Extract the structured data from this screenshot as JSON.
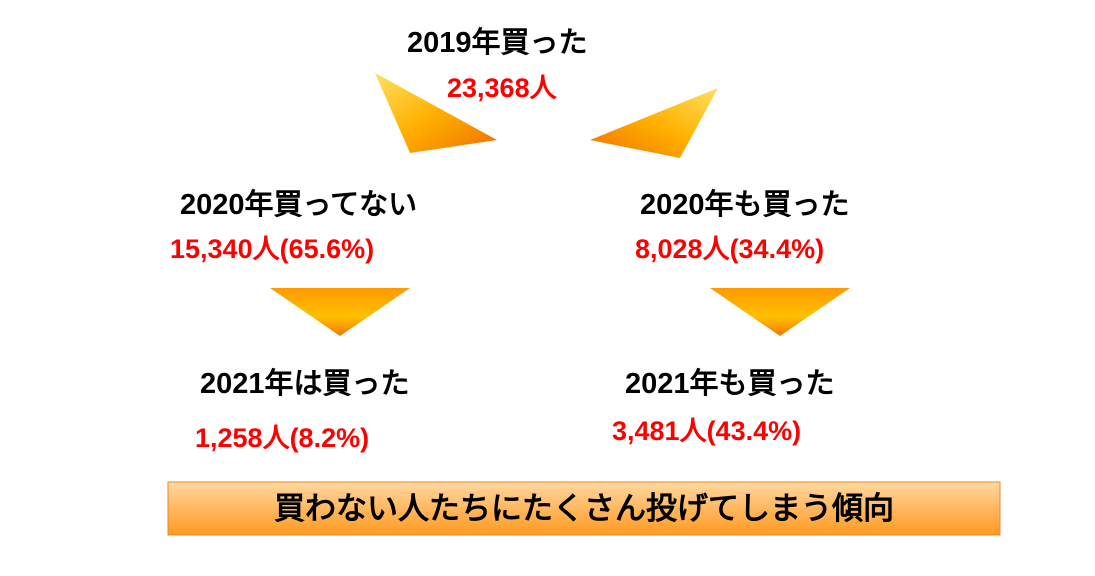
{
  "nodes": [
    {
      "label": "2019年買った",
      "value": "23,368人"
    },
    {
      "label": "2020年買ってない",
      "value": "15,340人(65.6%)"
    },
    {
      "label": "2020年も買った",
      "value": "8,028人(34.4%)"
    },
    {
      "label": "2021年は買った",
      "value": "1,258人(8.2%)"
    },
    {
      "label": "2021年も買った",
      "value": "3,481人(43.4%)"
    }
  ],
  "banner": "買わない人たちにたくさん投げてしまう傾向"
}
